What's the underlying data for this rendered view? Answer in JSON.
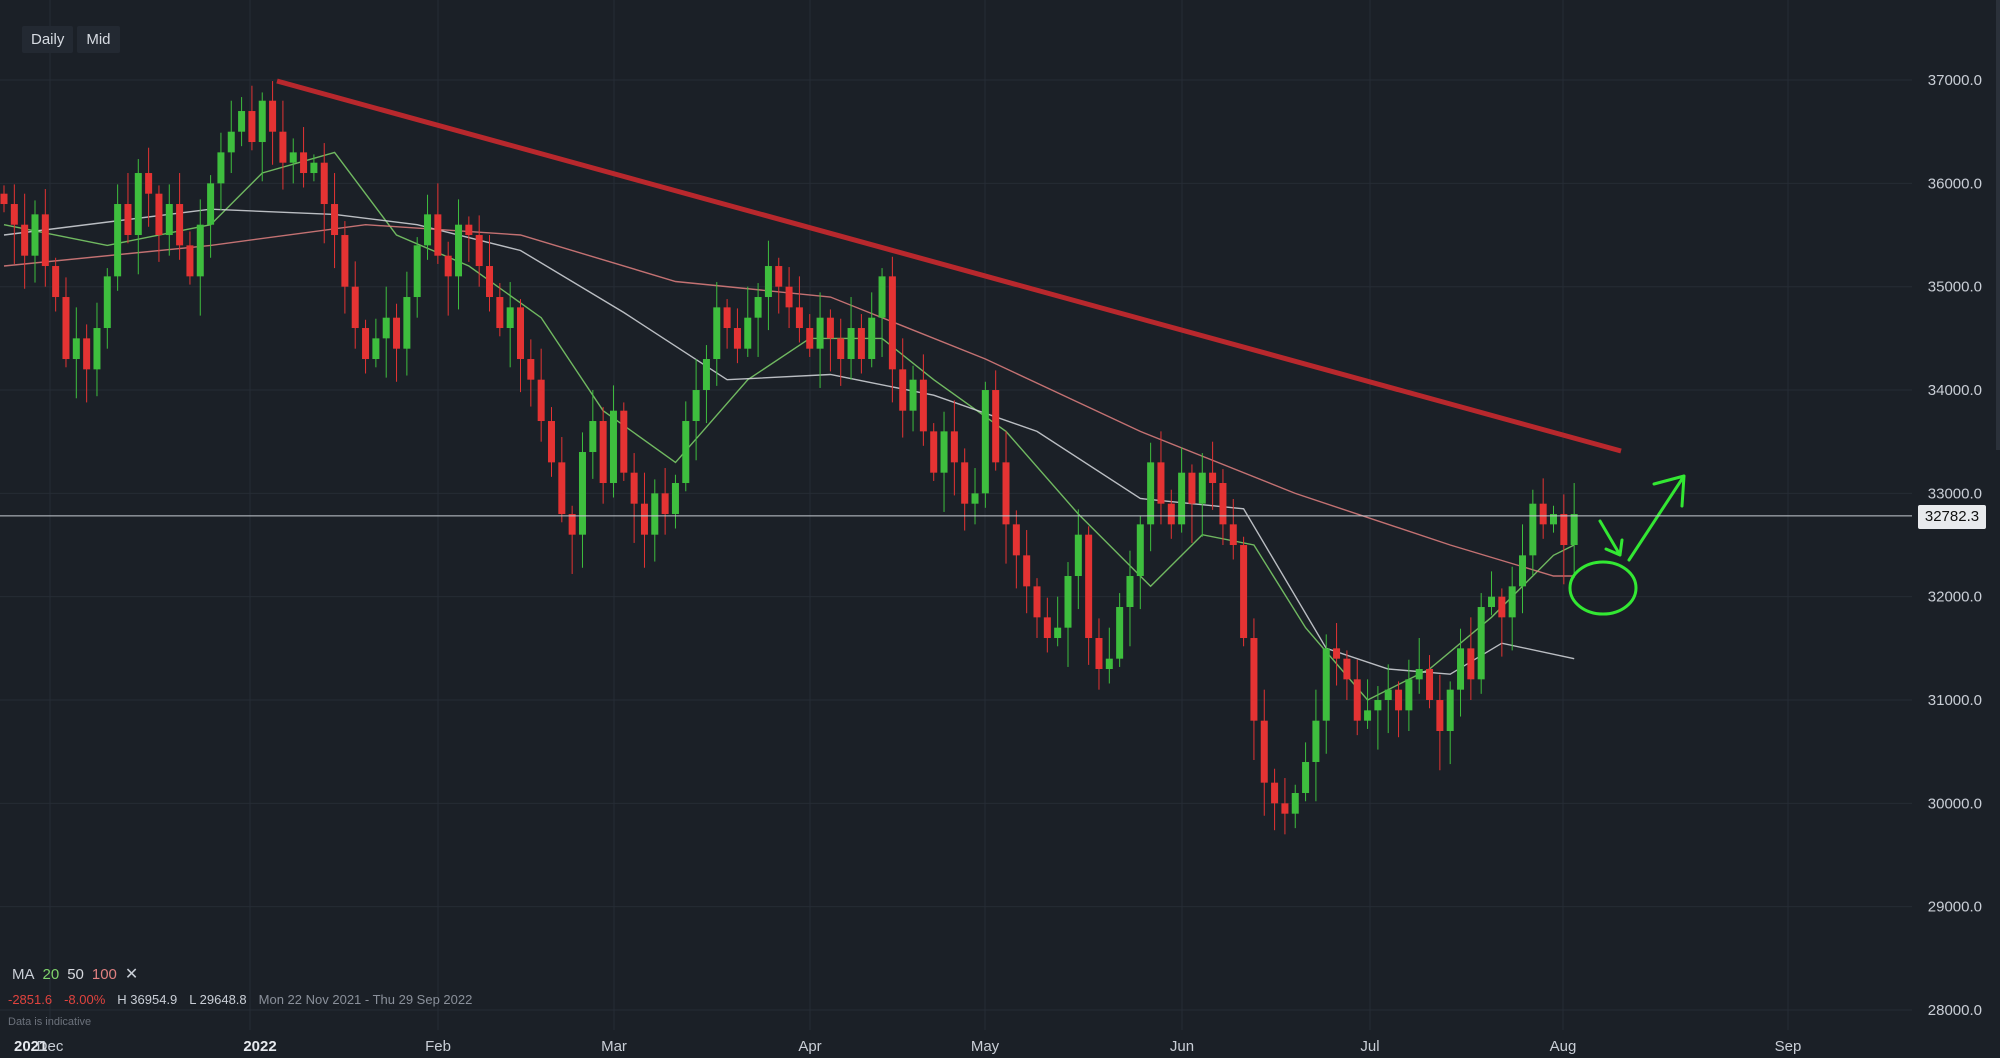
{
  "toolbar": {
    "interval": "Daily",
    "price_type": "Mid"
  },
  "legend": {
    "ma_label": "MA",
    "periods": [
      {
        "label": "20",
        "color": "#7fd36b"
      },
      {
        "label": "50",
        "color": "#d6d9de"
      },
      {
        "label": "100",
        "color": "#e08080"
      }
    ],
    "close_icon": "✕"
  },
  "stats": {
    "change": "-2851.6",
    "change_pct": "-8.00%",
    "high": "H 36954.9",
    "low": "L 29648.8",
    "range": "Mon 22 Nov 2021 - Thu 29 Sep 2022"
  },
  "disclaimer": "Data is indicative",
  "current_price": {
    "label": "32782.3",
    "value": 32782.3
  },
  "colors": {
    "background": "#1b2027",
    "grid": "#262c35",
    "up": "#3ebe3e",
    "down": "#e43333",
    "trendline": "#b8282d",
    "annotation": "#33e833",
    "ma20": "#7fd36b",
    "ma50": "#d6d9de",
    "ma100": "#e08080"
  },
  "chart_data": {
    "type": "candlestick",
    "y_axis": {
      "min": 28000,
      "max": 37000,
      "ticks": [
        "28000.0",
        "29000.0",
        "30000.0",
        "31000.0",
        "32000.0",
        "33000.0",
        "34000.0",
        "35000.0",
        "36000.0",
        "37000.0"
      ],
      "position": "right"
    },
    "x_axis": {
      "ticks": [
        "2021",
        "Dec",
        "2022",
        "Feb",
        "Mar",
        "Apr",
        "May",
        "Jun",
        "Jul",
        "Aug",
        "Sep"
      ],
      "start": "2021-11-22",
      "end": "2022-09-29"
    },
    "grid": true,
    "candles": [
      [
        35900,
        35800
      ],
      [
        35800,
        35600
      ],
      [
        35600,
        35300
      ],
      [
        35300,
        35700
      ],
      [
        35700,
        35200
      ],
      [
        35200,
        34900
      ],
      [
        34900,
        34300
      ],
      [
        34300,
        34500
      ],
      [
        34500,
        34200
      ],
      [
        34200,
        34600
      ],
      [
        34600,
        35100
      ],
      [
        35100,
        35800
      ],
      [
        35800,
        35500
      ],
      [
        35500,
        36100
      ],
      [
        36100,
        35900
      ],
      [
        35900,
        35500
      ],
      [
        35500,
        35800
      ],
      [
        35800,
        35400
      ],
      [
        35400,
        35100
      ],
      [
        35100,
        35600
      ],
      [
        35600,
        36000
      ],
      [
        36000,
        36300
      ],
      [
        36300,
        36500
      ],
      [
        36500,
        36700
      ],
      [
        36700,
        36400
      ],
      [
        36400,
        36800
      ],
      [
        36800,
        36500
      ],
      [
        36500,
        36200
      ],
      [
        36200,
        36300
      ],
      [
        36300,
        36100
      ],
      [
        36100,
        36200
      ],
      [
        36200,
        35800
      ],
      [
        35800,
        35500
      ],
      [
        35500,
        35000
      ],
      [
        35000,
        34600
      ],
      [
        34600,
        34300
      ],
      [
        34300,
        34500
      ],
      [
        34500,
        34700
      ],
      [
        34700,
        34400
      ],
      [
        34400,
        34900
      ],
      [
        34900,
        35400
      ],
      [
        35400,
        35700
      ],
      [
        35700,
        35300
      ],
      [
        35300,
        35100
      ],
      [
        35100,
        35600
      ],
      [
        35600,
        35500
      ],
      [
        35500,
        35200
      ],
      [
        35200,
        34900
      ],
      [
        34900,
        34600
      ],
      [
        34600,
        34800
      ],
      [
        34800,
        34300
      ],
      [
        34300,
        34100
      ],
      [
        34100,
        33700
      ],
      [
        33700,
        33300
      ],
      [
        33300,
        32800
      ],
      [
        32800,
        32600
      ],
      [
        32600,
        33400
      ],
      [
        33400,
        33700
      ],
      [
        33700,
        33100
      ],
      [
        33100,
        33800
      ],
      [
        33800,
        33200
      ],
      [
        33200,
        32900
      ],
      [
        32900,
        32600
      ],
      [
        32600,
        33000
      ],
      [
        33000,
        32800
      ],
      [
        32800,
        33100
      ],
      [
        33100,
        33700
      ],
      [
        33700,
        34000
      ],
      [
        34000,
        34300
      ],
      [
        34300,
        34800
      ],
      [
        34800,
        34600
      ],
      [
        34600,
        34400
      ],
      [
        34400,
        34700
      ],
      [
        34700,
        34900
      ],
      [
        34900,
        35200
      ],
      [
        35200,
        35000
      ],
      [
        35000,
        34800
      ],
      [
        34800,
        34600
      ],
      [
        34600,
        34400
      ],
      [
        34400,
        34700
      ],
      [
        34700,
        34500
      ],
      [
        34500,
        34300
      ],
      [
        34300,
        34600
      ],
      [
        34600,
        34300
      ],
      [
        34300,
        34700
      ],
      [
        34700,
        35100
      ],
      [
        35100,
        34200
      ],
      [
        34200,
        33800
      ],
      [
        33800,
        34100
      ],
      [
        34100,
        33600
      ],
      [
        33600,
        33200
      ],
      [
        33200,
        33600
      ],
      [
        33600,
        33300
      ],
      [
        33300,
        32900
      ],
      [
        32900,
        33000
      ],
      [
        33000,
        34000
      ],
      [
        34000,
        33300
      ],
      [
        33300,
        32700
      ],
      [
        32700,
        32400
      ],
      [
        32400,
        32100
      ],
      [
        32100,
        31800
      ],
      [
        31800,
        31600
      ],
      [
        31600,
        31700
      ],
      [
        31700,
        32200
      ],
      [
        32200,
        32600
      ],
      [
        32600,
        31600
      ],
      [
        31600,
        31300
      ],
      [
        31300,
        31400
      ],
      [
        31400,
        31900
      ],
      [
        31900,
        32200
      ],
      [
        32200,
        32700
      ],
      [
        32700,
        33300
      ],
      [
        33300,
        32900
      ],
      [
        32900,
        32700
      ],
      [
        32700,
        33200
      ],
      [
        33200,
        32900
      ],
      [
        32900,
        33200
      ],
      [
        33200,
        33100
      ],
      [
        33100,
        32700
      ],
      [
        32700,
        32500
      ],
      [
        32500,
        31600
      ],
      [
        31600,
        30800
      ],
      [
        30800,
        30200
      ],
      [
        30200,
        30000
      ],
      [
        30000,
        29900
      ],
      [
        29900,
        30100
      ],
      [
        30100,
        30400
      ],
      [
        30400,
        30800
      ],
      [
        30800,
        31500
      ],
      [
        31500,
        31400
      ],
      [
        31400,
        31200
      ],
      [
        31200,
        30800
      ],
      [
        30800,
        30900
      ],
      [
        30900,
        31000
      ],
      [
        31000,
        31100
      ],
      [
        31100,
        30900
      ],
      [
        30900,
        31200
      ],
      [
        31200,
        31300
      ],
      [
        31300,
        31000
      ],
      [
        31000,
        30700
      ],
      [
        30700,
        31100
      ],
      [
        31100,
        31500
      ],
      [
        31500,
        31200
      ],
      [
        31200,
        31900
      ],
      [
        31900,
        32000
      ],
      [
        32000,
        31800
      ],
      [
        31800,
        32100
      ],
      [
        32100,
        32400
      ],
      [
        32400,
        32900
      ],
      [
        32900,
        32700
      ],
      [
        32700,
        32800
      ],
      [
        32800,
        32500
      ],
      [
        32500,
        32800
      ]
    ],
    "moving_averages": [
      {
        "period": "20",
        "points": [
          [
            0,
            35600
          ],
          [
            10,
            35400
          ],
          [
            20,
            35600
          ],
          [
            25,
            36100
          ],
          [
            32,
            36300
          ],
          [
            38,
            35500
          ],
          [
            45,
            35200
          ],
          [
            52,
            34700
          ],
          [
            58,
            33800
          ],
          [
            65,
            33300
          ],
          [
            72,
            34100
          ],
          [
            78,
            34500
          ],
          [
            85,
            34500
          ],
          [
            90,
            34100
          ],
          [
            97,
            33600
          ],
          [
            104,
            32800
          ],
          [
            111,
            32100
          ],
          [
            116,
            32600
          ],
          [
            121,
            32500
          ],
          [
            126,
            31700
          ],
          [
            132,
            31000
          ],
          [
            138,
            31300
          ],
          [
            144,
            31800
          ],
          [
            150,
            32400
          ],
          [
            152,
            32500
          ]
        ]
      },
      {
        "period": "50",
        "points": [
          [
            0,
            35500
          ],
          [
            20,
            35750
          ],
          [
            32,
            35700
          ],
          [
            40,
            35600
          ],
          [
            50,
            35350
          ],
          [
            60,
            34750
          ],
          [
            70,
            34100
          ],
          [
            80,
            34150
          ],
          [
            90,
            33950
          ],
          [
            100,
            33600
          ],
          [
            110,
            32950
          ],
          [
            120,
            32850
          ],
          [
            128,
            31500
          ],
          [
            134,
            31300
          ],
          [
            140,
            31250
          ],
          [
            145,
            31550
          ],
          [
            152,
            31400
          ]
        ]
      },
      {
        "period": "100",
        "points": [
          [
            0,
            35200
          ],
          [
            20,
            35400
          ],
          [
            35,
            35600
          ],
          [
            50,
            35500
          ],
          [
            65,
            35050
          ],
          [
            80,
            34900
          ],
          [
            95,
            34300
          ],
          [
            110,
            33600
          ],
          [
            125,
            33000
          ],
          [
            140,
            32500
          ],
          [
            150,
            32200
          ],
          [
            152,
            32200
          ]
        ]
      }
    ]
  }
}
